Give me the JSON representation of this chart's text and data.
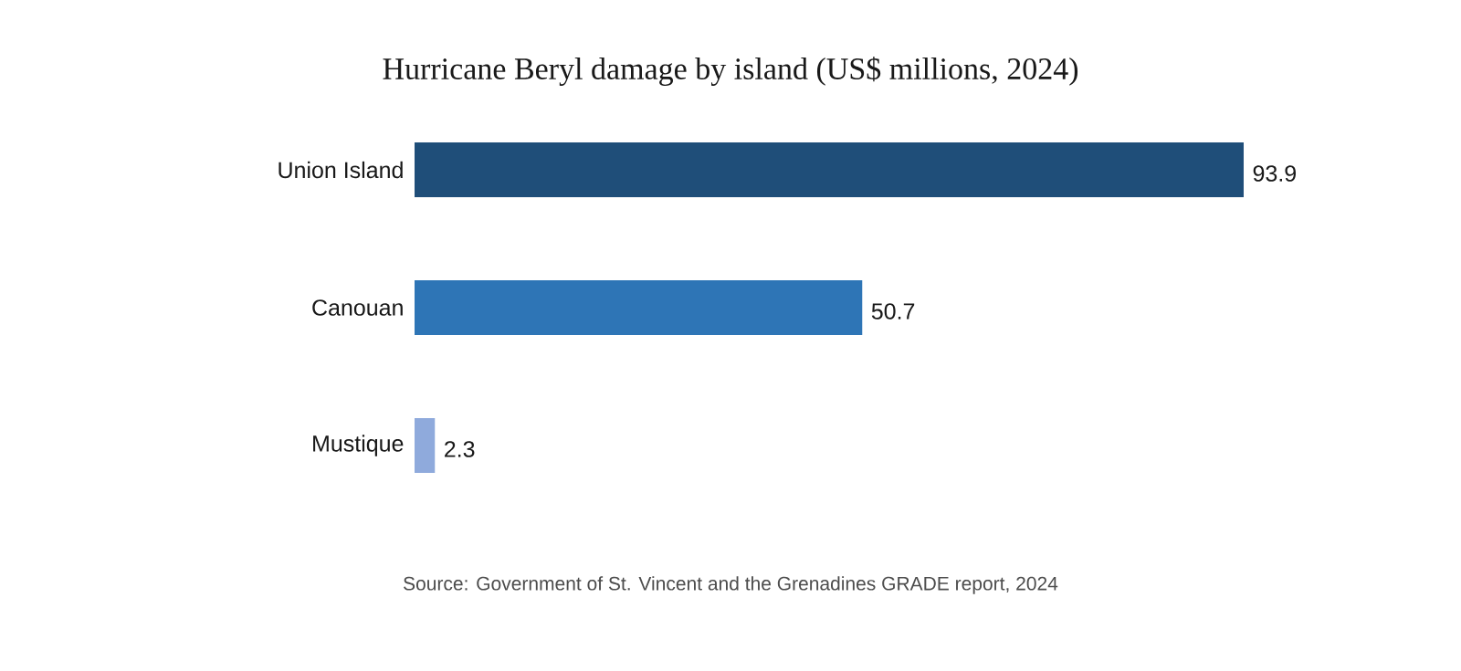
{
  "chart_data": {
    "type": "bar",
    "orientation": "horizontal",
    "title": "Hurricane Beryl damage by island (US$ millions, 2024)",
    "categories": [
      "Union Island",
      "Canouan",
      "Mustique"
    ],
    "values": [
      93.9,
      50.7,
      2.3
    ],
    "colors": [
      "#1f4e79",
      "#2e75b6",
      "#8faadc"
    ],
    "data_labels": true,
    "annotations": [
      "Source: Government of St. Vincent and the Grenadines GRADE report, 2024"
    ]
  }
}
